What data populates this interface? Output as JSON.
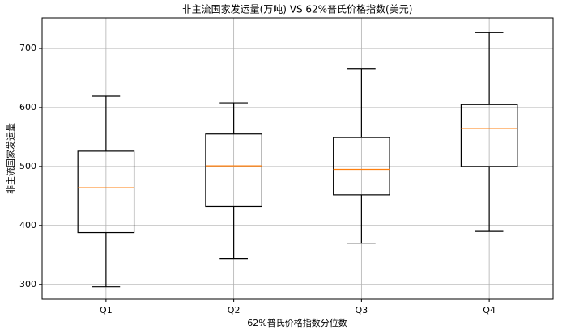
{
  "chart_data": {
    "type": "box",
    "title": "非主流国家发运量(万吨) VS 62%普氏价格指数(美元)",
    "x_label": "62%普氏价格指数分位数",
    "y_label": "非主流国家发运量",
    "categories": [
      "Q1",
      "Q2",
      "Q3",
      "Q4"
    ],
    "boxes": [
      {
        "whislo": 296,
        "q1": 388,
        "med": 464,
        "q3": 526,
        "whishi": 619
      },
      {
        "whislo": 344,
        "q1": 432,
        "med": 501,
        "q3": 555,
        "whishi": 608
      },
      {
        "whislo": 370,
        "q1": 452,
        "med": 495,
        "q3": 549,
        "whishi": 666
      },
      {
        "whislo": 390,
        "q1": 500,
        "med": 564,
        "q3": 605,
        "whishi": 727
      }
    ],
    "box_color": "#000000",
    "median_color": "#ff7f0e",
    "ylim": [
      275,
      752
    ],
    "yticks": [
      300,
      400,
      500,
      600,
      700
    ],
    "grid": true
  }
}
